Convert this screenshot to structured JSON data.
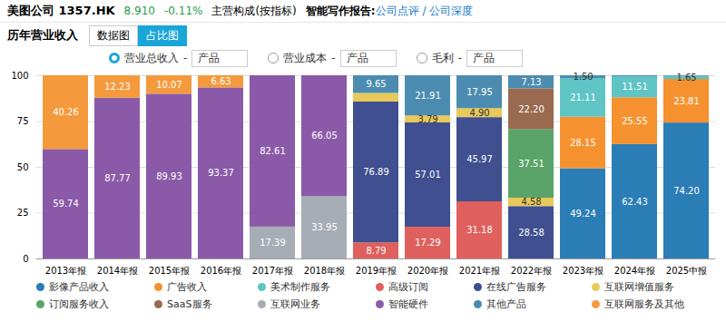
{
  "page": {
    "header": {
      "company": "美图公司",
      "code": "1357.HK",
      "price": "8.910",
      "change": "-0.11%",
      "tab": "主营构成(按指标)",
      "report_label": "智能写作报告:",
      "links": [
        "公司点评",
        "公司深度"
      ],
      "separator": "/"
    },
    "section_title": "历年营业收入",
    "view_tabs": [
      {
        "label": "数据图",
        "active": false
      },
      {
        "label": "占比图",
        "active": true
      }
    ],
    "metrics": [
      {
        "label": "营业总收入",
        "selected": true,
        "separator": "-",
        "by": "产品"
      },
      {
        "label": "营业成本",
        "selected": false,
        "separator": "-",
        "by": "产品"
      },
      {
        "label": "毛利",
        "selected": false,
        "separator": "-",
        "by": "产品"
      }
    ]
  },
  "chart_data": {
    "type": "bar",
    "stacked": true,
    "data_labels": true,
    "grid": true,
    "legend": "bottom",
    "categories": [
      "2013年报",
      "2014年报",
      "2015年报",
      "2016年报",
      "2017年报",
      "2018年报",
      "2019年报",
      "2020年报",
      "2021年报",
      "2022年报",
      "2023年报",
      "2024年报",
      "2025中报"
    ],
    "ylim": [
      0,
      100
    ],
    "yticks": [
      0,
      25,
      50,
      75,
      100
    ],
    "series": [
      {
        "name": "影像产品收入",
        "color": "#2a7db5",
        "values": [
          null,
          null,
          null,
          null,
          null,
          null,
          null,
          null,
          null,
          null,
          49.24,
          62.43,
          74.2
        ],
        "value_labels": [
          null,
          null,
          null,
          null,
          null,
          null,
          null,
          null,
          null,
          null,
          "49.24",
          "62.43",
          "74.20"
        ]
      },
      {
        "name": "广告收入",
        "color": "#f5922f",
        "values": [
          null,
          null,
          null,
          null,
          null,
          null,
          null,
          null,
          null,
          null,
          28.15,
          25.55,
          23.81
        ],
        "value_labels": [
          null,
          null,
          null,
          null,
          null,
          null,
          null,
          null,
          null,
          null,
          "28.15",
          "25.55",
          "23.81"
        ]
      },
      {
        "name": "美术制作服务",
        "color": "#5fc4c4",
        "values": [
          null,
          null,
          null,
          null,
          null,
          null,
          null,
          null,
          null,
          null,
          21.11,
          11.51,
          1.65
        ],
        "value_labels": [
          null,
          null,
          null,
          null,
          null,
          null,
          null,
          null,
          null,
          null,
          "21.11",
          "11.51",
          "1.65"
        ]
      },
      {
        "name": "高级订阅",
        "color": "#e0605e",
        "values": [
          null,
          null,
          null,
          null,
          null,
          null,
          8.79,
          17.29,
          31.18,
          null,
          null,
          null,
          null
        ],
        "value_labels": [
          null,
          null,
          null,
          null,
          null,
          null,
          "8.79",
          "17.29",
          "31.18",
          null,
          null,
          null,
          null
        ]
      },
      {
        "name": "在线广告服务",
        "color": "#3f4f8f",
        "values": [
          null,
          null,
          null,
          null,
          null,
          null,
          76.89,
          57.01,
          45.97,
          28.58,
          null,
          null,
          null
        ],
        "value_labels": [
          null,
          null,
          null,
          null,
          null,
          null,
          "76.89",
          "57.01",
          "45.97",
          "28.58",
          null,
          null,
          null
        ]
      },
      {
        "name": "互联网增值服务",
        "color": "#e8c95a",
        "values": [
          null,
          null,
          null,
          null,
          null,
          null,
          4.67,
          3.79,
          4.9,
          4.58,
          null,
          null,
          null
        ],
        "value_labels": [
          null,
          null,
          null,
          null,
          null,
          null,
          null,
          "3.79",
          "4.90",
          "4.58",
          null,
          null,
          null
        ]
      },
      {
        "name": "订阅服务收入",
        "color": "#5aa469",
        "values": [
          null,
          null,
          null,
          null,
          null,
          null,
          null,
          null,
          null,
          37.51,
          null,
          null,
          null
        ],
        "value_labels": [
          null,
          null,
          null,
          null,
          null,
          null,
          null,
          null,
          null,
          "37.51",
          null,
          null,
          null
        ]
      },
      {
        "name": "SaaS服务",
        "color": "#9a6a50",
        "values": [
          null,
          null,
          null,
          null,
          null,
          null,
          null,
          null,
          null,
          22.2,
          null,
          null,
          null
        ],
        "value_labels": [
          null,
          null,
          null,
          null,
          null,
          null,
          null,
          null,
          null,
          "22.20",
          null,
          null,
          null
        ]
      },
      {
        "name": "互联网业务",
        "color": "#a7adb5",
        "values": [
          null,
          null,
          null,
          null,
          17.39,
          33.95,
          null,
          null,
          null,
          null,
          null,
          null,
          null
        ],
        "value_labels": [
          null,
          null,
          null,
          null,
          "17.39",
          "33.95",
          null,
          null,
          null,
          null,
          null,
          null,
          null
        ]
      },
      {
        "name": "智能硬件",
        "color": "#8a5aa8",
        "values": [
          59.74,
          87.77,
          89.93,
          93.37,
          82.61,
          66.05,
          null,
          null,
          null,
          null,
          null,
          null,
          null
        ],
        "value_labels": [
          "59.74",
          "87.77",
          "89.93",
          "93.37",
          "82.61",
          "66.05",
          null,
          null,
          null,
          null,
          null,
          null,
          null
        ]
      },
      {
        "name": "其他产品",
        "color": "#4c8cb0",
        "values": [
          null,
          null,
          null,
          null,
          null,
          null,
          9.65,
          21.91,
          17.95,
          7.13,
          1.5,
          0.51,
          0.34
        ],
        "value_labels": [
          null,
          null,
          null,
          null,
          null,
          null,
          "9.65",
          "21.91",
          "17.95",
          "7.13",
          "1.50",
          null,
          null
        ]
      },
      {
        "name": "互联网服务及其他",
        "color": "#f59a3c",
        "values": [
          40.26,
          12.23,
          10.07,
          6.63,
          null,
          null,
          null,
          null,
          null,
          null,
          null,
          null,
          null
        ],
        "value_labels": [
          "40.26",
          "12.23",
          "10.07",
          "6.63",
          null,
          null,
          null,
          null,
          null,
          null,
          null,
          null,
          null
        ]
      }
    ]
  }
}
